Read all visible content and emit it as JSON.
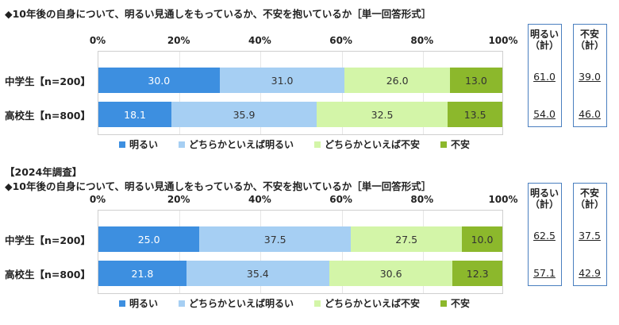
{
  "chart_data": [
    {
      "type": "bar",
      "orientation": "horizontal-stacked-100",
      "title": "10年後の自身について、明るい見通しをもっているか、不安を抱いているか［単一回答形式］",
      "xlim": [
        0,
        100
      ],
      "ticks": [
        "0%",
        "20%",
        "40%",
        "60%",
        "80%",
        "100%"
      ],
      "categories": [
        "中学生【n=200】",
        "高校生【n=800】"
      ],
      "series": [
        {
          "name": "明るい",
          "values": [
            30.0,
            18.1
          ]
        },
        {
          "name": "どちらかといえば明るい",
          "values": [
            31.0,
            35.9
          ]
        },
        {
          "name": "どちらかといえば不安",
          "values": [
            26.0,
            32.5
          ]
        },
        {
          "name": "不安",
          "values": [
            13.0,
            13.5
          ]
        }
      ],
      "summary": {
        "headers": [
          [
            "明るい",
            "（計）"
          ],
          [
            "不安",
            "（計）"
          ]
        ],
        "values": [
          [
            "61.0",
            "39.0"
          ],
          [
            "54.0",
            "46.0"
          ]
        ]
      }
    },
    {
      "type": "bar",
      "orientation": "horizontal-stacked-100",
      "pretitle": "【2024年調査】",
      "title": "10年後の自身について、明るい見通しをもっているか、不安を抱いているか［単一回答形式］",
      "xlim": [
        0,
        100
      ],
      "ticks": [
        "0%",
        "20%",
        "40%",
        "60%",
        "80%",
        "100%"
      ],
      "categories": [
        "中学生【n=200】",
        "高校生【n=800】"
      ],
      "series": [
        {
          "name": "明るい",
          "values": [
            25.0,
            21.8
          ]
        },
        {
          "name": "どちらかといえば明るい",
          "values": [
            37.5,
            35.4
          ]
        },
        {
          "name": "どちらかといえば不安",
          "values": [
            27.5,
            30.6
          ]
        },
        {
          "name": "不安",
          "values": [
            10.0,
            12.3
          ]
        }
      ],
      "summary": {
        "headers": [
          [
            "明るい",
            "（計）"
          ],
          [
            "不安",
            "（計）"
          ]
        ],
        "values": [
          [
            "62.5",
            "37.5"
          ],
          [
            "57.1",
            "42.9"
          ]
        ]
      }
    }
  ],
  "colors": [
    "#3d8fe0",
    "#a6cff3",
    "#d3f5a8",
    "#8cb82c"
  ],
  "title_prefix": "◆"
}
